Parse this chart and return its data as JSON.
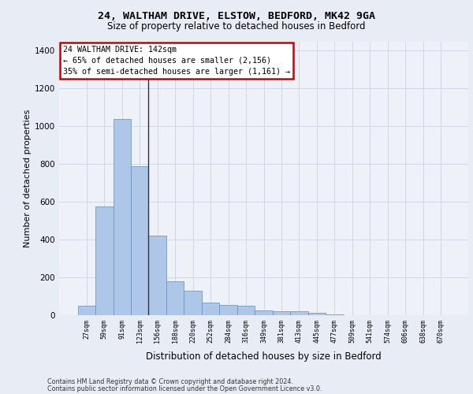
{
  "title1": "24, WALTHAM DRIVE, ELSTOW, BEDFORD, MK42 9GA",
  "title2": "Size of property relative to detached houses in Bedford",
  "xlabel": "Distribution of detached houses by size in Bedford",
  "ylabel": "Number of detached properties",
  "categories": [
    "27sqm",
    "59sqm",
    "91sqm",
    "123sqm",
    "156sqm",
    "188sqm",
    "220sqm",
    "252sqm",
    "284sqm",
    "316sqm",
    "349sqm",
    "381sqm",
    "413sqm",
    "445sqm",
    "477sqm",
    "509sqm",
    "541sqm",
    "574sqm",
    "606sqm",
    "638sqm",
    "670sqm"
  ],
  "values": [
    50,
    575,
    1040,
    790,
    420,
    180,
    130,
    65,
    55,
    50,
    25,
    20,
    20,
    12,
    5,
    2,
    1,
    0,
    0,
    0,
    0
  ],
  "bar_color": "#aec6e8",
  "bar_edge_color": "#5a8fc4",
  "vline_color": "#333333",
  "annotation_box_text": "24 WALTHAM DRIVE: 142sqm\n← 65% of detached houses are smaller (2,156)\n35% of semi-detached houses are larger (1,161) →",
  "annotation_box_color": "#ffffff",
  "annotation_box_edge_color": "#cc0000",
  "ylim": [
    0,
    1450
  ],
  "yticks": [
    0,
    200,
    400,
    600,
    800,
    1000,
    1200,
    1400
  ],
  "grid_color": "#d0d8e8",
  "background_color": "#e8edf5",
  "plot_bg_color": "#eef1f7",
  "footer1": "Contains HM Land Registry data © Crown copyright and database right 2024.",
  "footer2": "Contains public sector information licensed under the Open Government Licence v3.0."
}
